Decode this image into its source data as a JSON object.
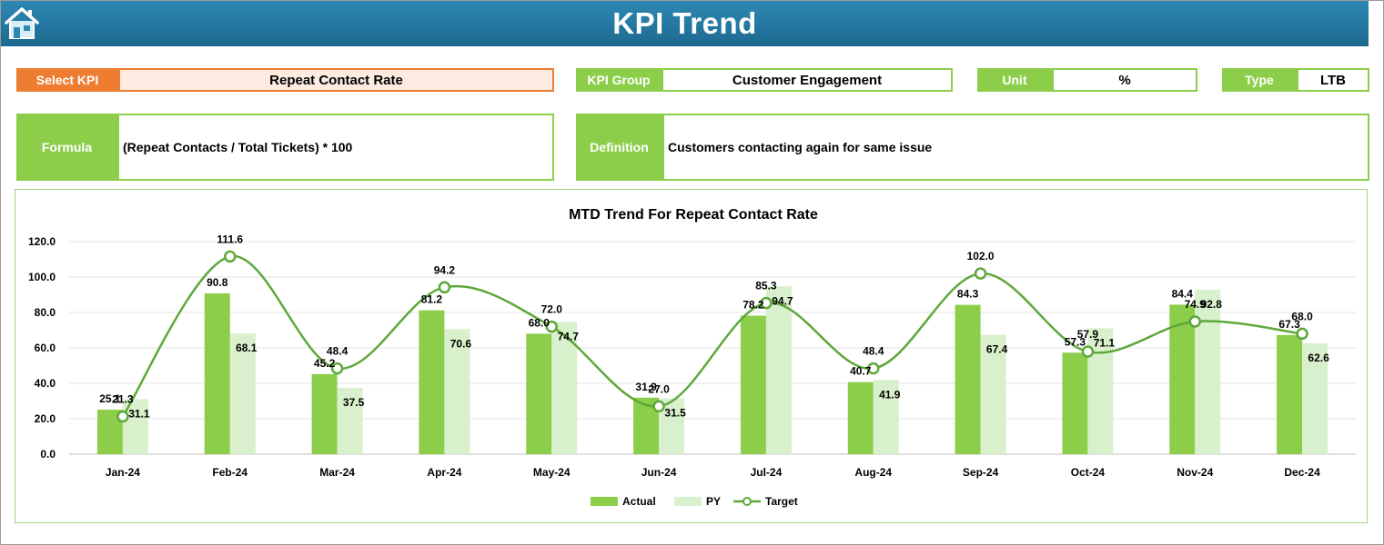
{
  "header": {
    "title": "KPI Trend",
    "home_icon": "home-icon"
  },
  "select_kpi": {
    "label": "Select KPI",
    "value": "Repeat Contact Rate"
  },
  "kpi_group": {
    "label": "KPI Group",
    "value": "Customer Engagement"
  },
  "unit": {
    "label": "Unit",
    "value": "%"
  },
  "type": {
    "label": "Type",
    "value": "LTB"
  },
  "formula": {
    "label": "Formula",
    "value": "(Repeat Contacts / Total Tickets) * 100"
  },
  "definition": {
    "label": "Definition",
    "value": "Customers contacting again for same issue"
  },
  "colors": {
    "header": "#1d6a90",
    "accent_green": "#8cce4a",
    "accent_orange": "#ed7d31",
    "actual": "#8cce4a",
    "py": "#d9f0cc",
    "target": "#5ea83b"
  },
  "chart_data": {
    "type": "bar",
    "title": "MTD Trend For Repeat Contact Rate",
    "categories": [
      "Jan-24",
      "Feb-24",
      "Mar-24",
      "Apr-24",
      "May-24",
      "Jun-24",
      "Jul-24",
      "Aug-24",
      "Sep-24",
      "Oct-24",
      "Nov-24",
      "Dec-24"
    ],
    "series": [
      {
        "name": "Actual",
        "kind": "bar",
        "values": [
          25.1,
          90.8,
          45.2,
          81.2,
          68.0,
          31.9,
          78.2,
          40.7,
          84.3,
          57.3,
          84.4,
          67.3
        ]
      },
      {
        "name": "PY",
        "kind": "bar",
        "values": [
          31.1,
          68.1,
          37.5,
          70.6,
          74.7,
          31.5,
          94.7,
          41.9,
          67.4,
          71.1,
          92.8,
          62.6
        ]
      },
      {
        "name": "Target",
        "kind": "line",
        "values": [
          21.3,
          111.6,
          48.4,
          94.2,
          72.0,
          27.0,
          85.3,
          48.4,
          102.0,
          57.9,
          74.9,
          68.0
        ]
      }
    ],
    "ylim": [
      0,
      120
    ],
    "yticks": [
      "0.0",
      "20.0",
      "40.0",
      "60.0",
      "80.0",
      "100.0",
      "120.0"
    ],
    "grid": true,
    "legend": "bottom"
  }
}
